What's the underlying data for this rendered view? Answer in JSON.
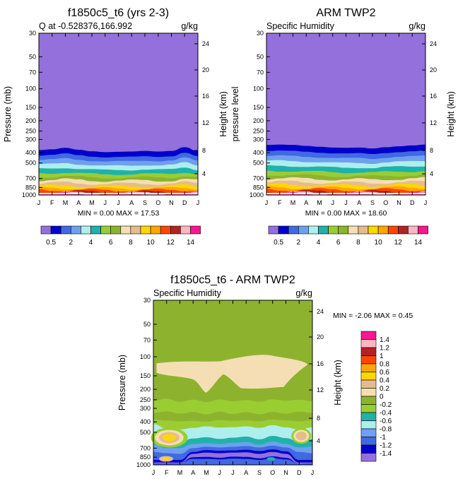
{
  "chart_data": [
    {
      "type": "contour",
      "title": "f1850c5_t6 (yrs 2-3)",
      "left_label": "Q at -0.528376,166.992",
      "right_label": "g/kg",
      "ylabel": "Pressure (mb)",
      "ylabel_right": "Height (km)",
      "stats": "MIN =   0.00 MAX =  17.53",
      "tropopause_mb": [
        378,
        372,
        360,
        375,
        388,
        395,
        392,
        390,
        385,
        390,
        385,
        355,
        385
      ],
      "upper_fill": "#9370db"
    },
    {
      "type": "contour",
      "title": "ARM TWP2",
      "left_label": "Specific Humidity",
      "right_label": "g/kg",
      "ylabel": "pressure level",
      "ylabel_right": "Height (km)",
      "stats": "MIN =   0.00 MAX =  18.60",
      "tropopause_mb": [
        338,
        335,
        338,
        345,
        352,
        358,
        360,
        358,
        365,
        355,
        348,
        342,
        335
      ],
      "upper_fill": "#9370db"
    },
    {
      "type": "contour",
      "title": "f1850c5_t6 - ARM TWP2",
      "left_label": "Specific Humidity",
      "right_label": "g/kg",
      "ylabel": "Pressure (mb)",
      "ylabel_right": "Height (km)",
      "stats": "MIN =  -2.06 MAX =   0.45",
      "background_fill": "#8db32e"
    }
  ],
  "axes": {
    "months": [
      "J",
      "F",
      "M",
      "A",
      "M",
      "J",
      "J",
      "A",
      "S",
      "O",
      "N",
      "D",
      "J"
    ],
    "pressure_ticks": [
      "30",
      "50",
      "70",
      "100",
      "150",
      "200",
      "250",
      "300",
      "400",
      "500",
      "700",
      "850",
      "1000"
    ],
    "height_ticks": [
      "24",
      "20",
      "16",
      "12",
      "8",
      "4"
    ]
  },
  "colorbar_top": {
    "colors": [
      "#9370db",
      "#0000cd",
      "#4169e1",
      "#6fa0ef",
      "#afeeee",
      "#20b2aa",
      "#9acd32",
      "#8db32e",
      "#f5deb3",
      "#e6bc8c",
      "#ffd700",
      "#ffa500",
      "#ff4500",
      "#b22222",
      "#ffb6c1",
      "#ff1493"
    ],
    "labels": [
      "0.5",
      "2",
      "4",
      "6",
      "8",
      "10",
      "12",
      "14"
    ]
  },
  "colorbar_diff": {
    "colors": [
      "#ff1493",
      "#ffb6c1",
      "#b22222",
      "#ff4500",
      "#ffa500",
      "#ffd700",
      "#e6bc8c",
      "#f5deb3",
      "#8db32e",
      "#9acd32",
      "#20b2aa",
      "#afeeee",
      "#6fa0ef",
      "#4169e1",
      "#0000cd",
      "#9370db"
    ],
    "labels": [
      "1.4",
      "1.2",
      "1",
      "0.8",
      "0.6",
      "0.4",
      "0.2",
      "0",
      "-0.2",
      "-0.4",
      "-0.6",
      "-0.8",
      "-1",
      "-1.2",
      "-1.4"
    ]
  }
}
